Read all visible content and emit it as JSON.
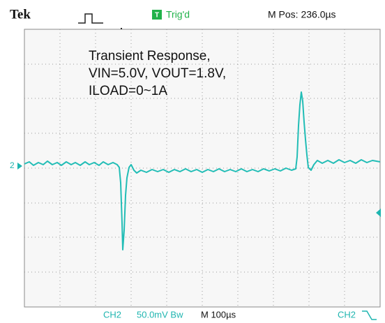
{
  "header": {
    "brand": "Tek",
    "trigger_icon": "T",
    "trigger_status": "Trig'd",
    "position": "M Pos: 236.0µs"
  },
  "annotation": [
    "Transient Response,",
    "VIN=5.0V, VOUT=1.8V,",
    "ILOAD=0~1A"
  ],
  "screen": {
    "channel_marker": "2"
  },
  "footer": {
    "channel": "CH2",
    "vertical_scale": "50.0mV Bw",
    "timebase": "M 100µs",
    "trigger_source": "CH2"
  }
}
